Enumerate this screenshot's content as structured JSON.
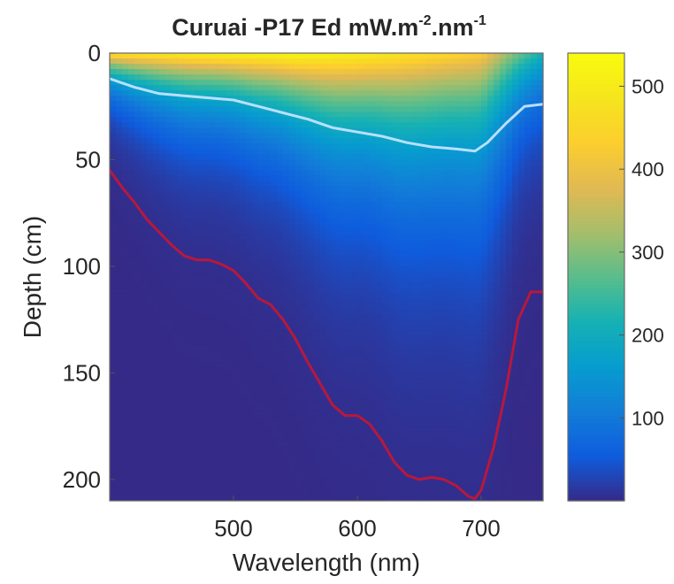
{
  "chart_data": {
    "type": "heatmap",
    "title": "Curuai -P17 Ed mW.m",
    "title_sup1": "-2",
    "title_mid": ".nm",
    "title_sup2": "-1",
    "xlabel": "Wavelength  (nm)",
    "ylabel": "Depth  (cm)",
    "xlim": [
      400,
      750
    ],
    "ylim": [
      0,
      210
    ],
    "y_reversed": true,
    "xticks": [
      500,
      600,
      700
    ],
    "yticks": [
      0,
      50,
      100,
      150,
      200
    ],
    "colorbar": {
      "colormap": "parula",
      "range": [
        0,
        540
      ],
      "ticks": [
        100,
        200,
        300,
        400,
        500
      ]
    },
    "surface_values": {
      "wavelength": [
        400,
        450,
        500,
        550,
        600,
        650,
        700,
        720,
        750
      ],
      "value": [
        480,
        500,
        520,
        530,
        510,
        470,
        430,
        330,
        210
      ]
    },
    "series": [
      {
        "color": "#b8e0ff",
        "x": [
          400,
          420,
          440,
          460,
          480,
          500,
          520,
          540,
          560,
          580,
          600,
          620,
          640,
          660,
          680,
          695,
          705,
          720,
          735,
          750
        ],
        "y": [
          12,
          16,
          19,
          20,
          21,
          22,
          25,
          28,
          31,
          35,
          37,
          39,
          42,
          44,
          45,
          46,
          42,
          33,
          25,
          24
        ]
      },
      {
        "color": "#b8183c",
        "x": [
          400,
          410,
          420,
          430,
          440,
          450,
          460,
          470,
          480,
          490,
          500,
          510,
          520,
          530,
          540,
          550,
          560,
          570,
          580,
          590,
          600,
          610,
          620,
          630,
          640,
          650,
          660,
          670,
          680,
          690,
          695,
          700,
          710,
          720,
          730,
          740,
          750
        ],
        "y": [
          55,
          63,
          70,
          78,
          84,
          90,
          95,
          97,
          97,
          99,
          102,
          108,
          115,
          118,
          125,
          134,
          145,
          155,
          165,
          170,
          170,
          174,
          182,
          192,
          198,
          200,
          199,
          200,
          203,
          208,
          209,
          205,
          185,
          158,
          125,
          112,
          112
        ]
      }
    ]
  }
}
